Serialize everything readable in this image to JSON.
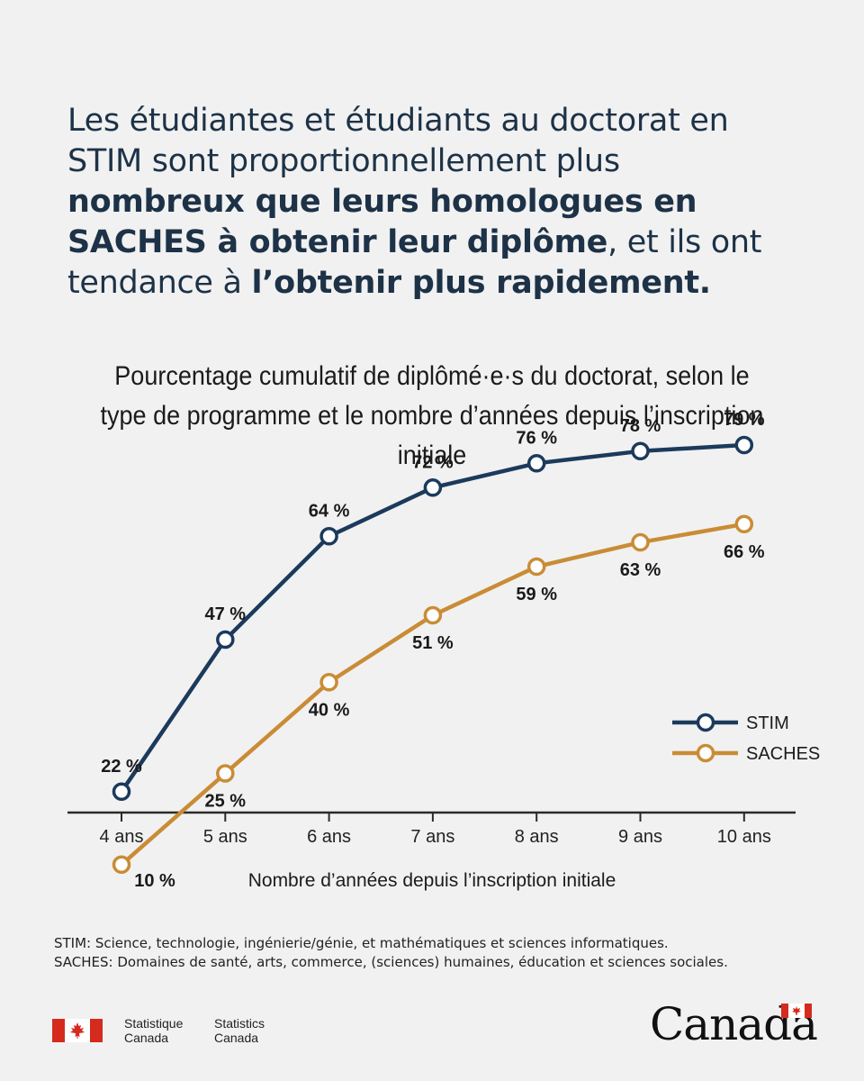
{
  "headline": {
    "part1": "Les étudiantes et étudiants au doctorat en STIM sont proportionnellement plus ",
    "bold1": "nombreux que leurs homologues en SACHES à obtenir leur diplôme",
    "part2": ", et ils ont tendance à ",
    "bold2": "l’obtenir plus rapidement."
  },
  "colors": {
    "stim": "#1b3a5c",
    "saches": "#c98c36",
    "axis": "#2a2a2a"
  },
  "chart_data": {
    "type": "line",
    "title": "Pourcentage cumulatif de diplômé·e·s du doctorat, selon le type de programme et le nombre d’années depuis l’inscription initiale",
    "xlabel": "Nombre d’années depuis l’inscription initiale",
    "ylabel": "",
    "categories": [
      "4 ans",
      "5 ans",
      "6 ans",
      "7 ans",
      "8 ans",
      "9 ans",
      "10 ans"
    ],
    "ylim": [
      0,
      100
    ],
    "series": [
      {
        "name": "STIM",
        "values": [
          22,
          47,
          64,
          72,
          76,
          78,
          79
        ],
        "labels": [
          "22 %",
          "47 %",
          "64 %",
          "72 %",
          "76 %",
          "78 %",
          "79 %"
        ]
      },
      {
        "name": "SACHES",
        "values": [
          10,
          25,
          40,
          51,
          59,
          63,
          66
        ],
        "labels": [
          "10 %",
          "25 %",
          "40 %",
          "51 %",
          "59 %",
          "63 %",
          "66 %"
        ]
      }
    ],
    "legend": "right"
  },
  "footnotes": {
    "stim": "STIM: Science, technologie, ingénierie/génie, et mathématiques et sciences informatiques.",
    "saches": "SACHES: Domaines de santé, arts, commerce, (sciences) humaines, éducation et sciences sociales."
  },
  "branding": {
    "agency_fr": "Statistique Canada",
    "agency_en": "Statistics Canada",
    "wordmark": "Canada"
  }
}
